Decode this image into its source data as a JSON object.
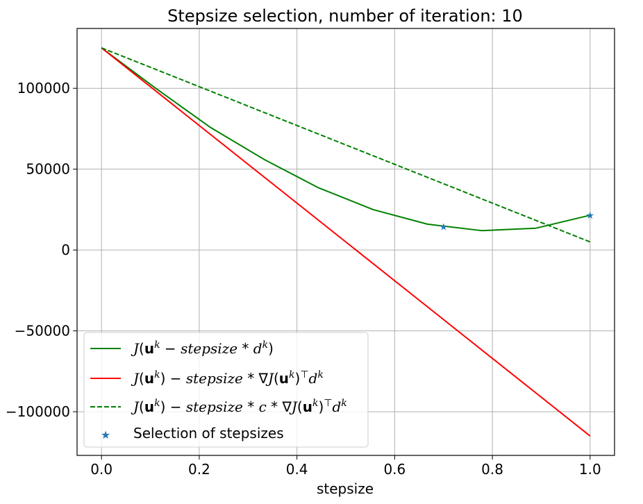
{
  "chart_data": {
    "type": "line",
    "title": "Stepsize selection, number of iteration: 10",
    "xlabel": "stepsize",
    "ylabel": "",
    "xlim": [
      -0.05,
      1.05
    ],
    "ylim": [
      -127000,
      137000
    ],
    "grid": true,
    "legend_position": "lower-left",
    "x_ticks": [
      0.0,
      0.2,
      0.4,
      0.6,
      0.8,
      1.0
    ],
    "x_tick_labels": [
      "0.0",
      "0.2",
      "0.4",
      "0.6",
      "0.8",
      "1.0"
    ],
    "y_ticks": [
      100000,
      50000,
      0,
      -50000,
      -100000
    ],
    "y_tick_labels": [
      "100000",
      "50000",
      "0",
      "−50000",
      "−100000"
    ],
    "series": [
      {
        "name": "J(u^k − stepsize * d^k)",
        "style": "solid",
        "color": "#008000",
        "x": [
          0.0,
          0.111,
          0.222,
          0.333,
          0.444,
          0.556,
          0.667,
          0.778,
          0.889,
          1.0
        ],
        "y": [
          125000,
          100000,
          76000,
          56000,
          38500,
          25000,
          16000,
          12000,
          13500,
          21500
        ]
      },
      {
        "name": "J(u^k) − stepsize * ∇J(u^k)^⊤ d^k",
        "style": "solid",
        "color": "#ff0000",
        "x": [
          0.0,
          1.0
        ],
        "y": [
          125000,
          -115000
        ]
      },
      {
        "name": "J(u^k) − stepsize * c * ∇J(u^k)^⊤ d^k",
        "style": "dashed",
        "color": "#008000",
        "x": [
          0.0,
          1.0
        ],
        "y": [
          125000,
          5000
        ]
      }
    ],
    "scatter": {
      "name": "Selection of stepsizes",
      "marker": "star",
      "color": "#1f77b4",
      "x": [
        0.7,
        1.0
      ],
      "y": [
        14500,
        21500
      ]
    },
    "legend": [
      {
        "kind": "line",
        "color": "#008000",
        "style": "solid",
        "label": "J(u^k − stepsize * d^k)"
      },
      {
        "kind": "line",
        "color": "#ff0000",
        "style": "solid",
        "label": "J(u^k) − stepsize * ∇J(u^k)^⊤ d^k"
      },
      {
        "kind": "line",
        "color": "#008000",
        "style": "dashed",
        "label": "J(u^k) − stepsize * c * ∇J(u^k)^⊤ d^k"
      },
      {
        "kind": "marker",
        "color": "#1f77b4",
        "style": "star",
        "label": "Selection of stepsizes"
      }
    ],
    "colors": {
      "grid": "#b0b0b0",
      "frame": "#000000"
    }
  }
}
